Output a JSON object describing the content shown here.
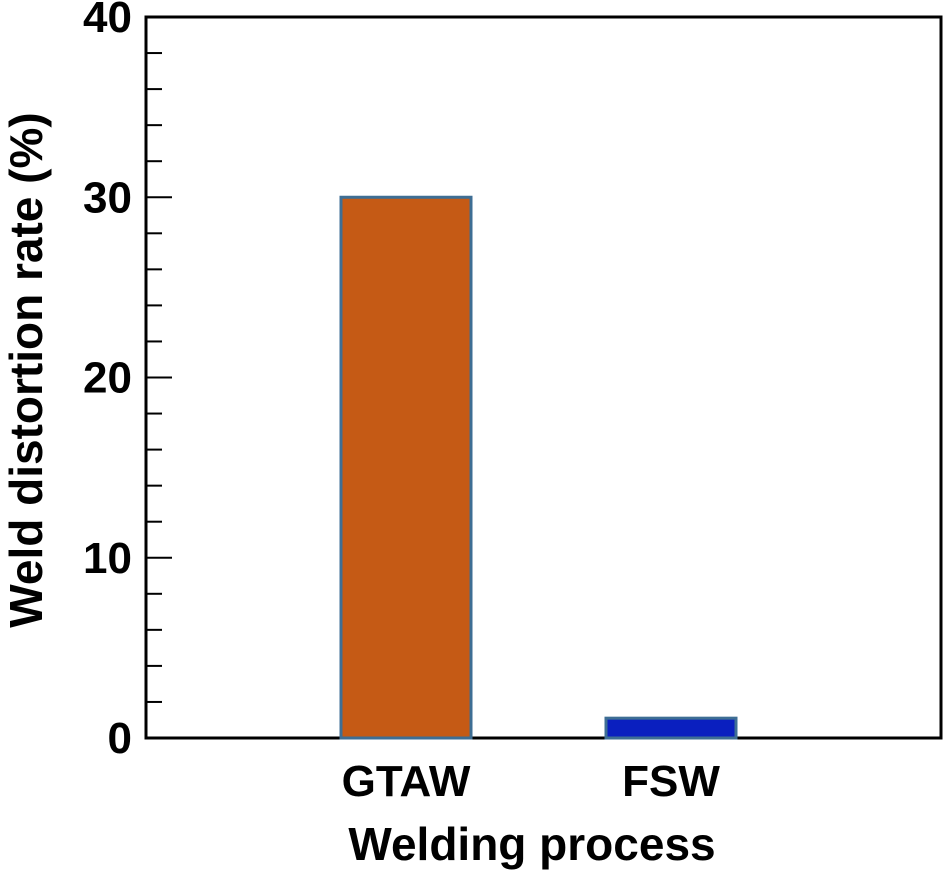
{
  "chart_data": {
    "type": "bar",
    "title": "",
    "xlabel": "Welding process",
    "ylabel": "Weld distortion rate (%)",
    "categories": [
      "GTAW",
      "FSW"
    ],
    "values": [
      30,
      1.1
    ],
    "ylim": [
      0,
      40
    ],
    "y_major_ticks": [
      0,
      10,
      20,
      30,
      40
    ],
    "y_tick_labels": [
      "0",
      "10",
      "20",
      "30",
      "40"
    ],
    "y_minor_step": 2,
    "grid": false,
    "legend": "none",
    "colors": {
      "bar_fills": [
        "#C55A15",
        "#0A1FBF"
      ],
      "bar_edge": "#3E6E94",
      "axis": "#000000"
    }
  }
}
